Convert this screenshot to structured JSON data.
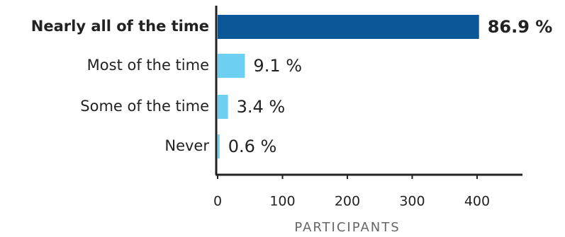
{
  "chart_data": {
    "type": "barh",
    "categories": [
      "Nearly all of the time",
      "Most of the time",
      "Some of the time",
      "Never"
    ],
    "values": [
      403,
      42,
      16,
      3
    ],
    "percent_labels": [
      "86.9 %",
      "9.1 %",
      "3.4 %",
      "0.6 %"
    ],
    "colors": [
      "#0b5797",
      "#6dcff2",
      "#6dcff2",
      "#6dcff2"
    ],
    "highlight": [
      true,
      false,
      false,
      false
    ],
    "x_label": "PARTICIPANTS",
    "xlim": [
      0,
      470
    ],
    "xticks": [
      0,
      100,
      200,
      300,
      400
    ],
    "grid": false
  }
}
